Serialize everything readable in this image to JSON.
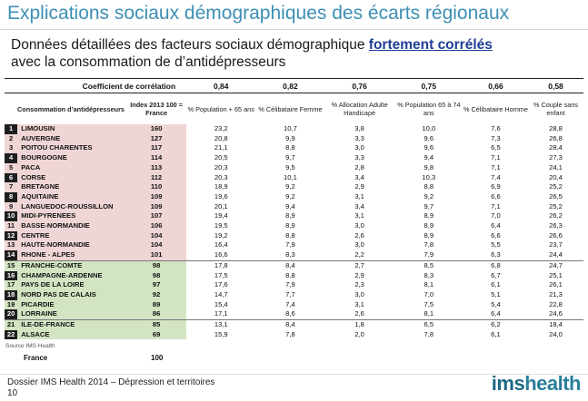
{
  "title": "Explications sociaux démographiques des écarts régionaux",
  "subtitle": {
    "line1_prefix": "Données détaillées des facteurs sociaux démographique",
    "line1_highlight": "fortement corrélés",
    "line2": "avec la consommation de d’antidépresseurs"
  },
  "table": {
    "coef_label": "Coefficient de corrélation",
    "coefficients": [
      "0,84",
      "0,82",
      "0,76",
      "0,75",
      "0,66",
      "0,58"
    ],
    "headers": {
      "region": "Consommation d’antidépresseurs",
      "index": "Index 2013 100 = France",
      "columns": [
        "% Population + 65 ans",
        "% Célibataire Femme",
        "% Allocation Adulte Handicapé",
        "% Population 65 à 74 ans",
        "% Célibataire Homme",
        "% Couple sans enfant"
      ]
    },
    "rows": [
      {
        "rank": "1",
        "region": "LIMOUSIN",
        "index": "160",
        "v": [
          "23,2",
          "10,7",
          "3,8",
          "10,0",
          "7,6",
          "28,8"
        ]
      },
      {
        "rank": "2",
        "region": "AUVERGNE",
        "index": "127",
        "v": [
          "20,8",
          "9,9",
          "3,3",
          "9,6",
          "7,3",
          "26,8"
        ]
      },
      {
        "rank": "3",
        "region": "POITOU CHARENTES",
        "index": "117",
        "v": [
          "21,1",
          "8,8",
          "3,0",
          "9,6",
          "6,5",
          "28,4"
        ]
      },
      {
        "rank": "4",
        "region": "BOURGOGNE",
        "index": "114",
        "v": [
          "20,5",
          "9,7",
          "3,3",
          "9,4",
          "7,1",
          "27,3"
        ]
      },
      {
        "rank": "5",
        "region": "PACA",
        "index": "113",
        "v": [
          "20,3",
          "9,5",
          "2,8",
          "9,8",
          "7,1",
          "24,1"
        ]
      },
      {
        "rank": "6",
        "region": "CORSE",
        "index": "112",
        "v": [
          "20,3",
          "10,1",
          "3,4",
          "10,3",
          "7,4",
          "20,4"
        ]
      },
      {
        "rank": "7",
        "region": "BRETAGNE",
        "index": "110",
        "v": [
          "18,9",
          "9,2",
          "2,9",
          "8,8",
          "6,9",
          "25,2"
        ]
      },
      {
        "rank": "8",
        "region": "AQUITAINE",
        "index": "109",
        "v": [
          "19,6",
          "9,2",
          "3,1",
          "9,2",
          "6,6",
          "26,5"
        ]
      },
      {
        "rank": "9",
        "region": "LANGUEDOC-ROUSSILLON",
        "index": "109",
        "v": [
          "20,1",
          "9,4",
          "3,4",
          "9,7",
          "7,1",
          "25,2"
        ]
      },
      {
        "rank": "10",
        "region": "MIDI-PYRENEES",
        "index": "107",
        "v": [
          "19,4",
          "8,9",
          "3,1",
          "8,9",
          "7,0",
          "26,2"
        ]
      },
      {
        "rank": "11",
        "region": "BASSE-NORMANDIE",
        "index": "106",
        "v": [
          "19,5",
          "8,9",
          "3,0",
          "8,9",
          "6,4",
          "26,3"
        ]
      },
      {
        "rank": "12",
        "region": "CENTRE",
        "index": "104",
        "v": [
          "19,2",
          "8,8",
          "2,6",
          "8,9",
          "6,6",
          "26,6"
        ]
      },
      {
        "rank": "13",
        "region": "HAUTE-NORMANDIE",
        "index": "104",
        "v": [
          "16,4",
          "7,9",
          "3,0",
          "7,8",
          "5,5",
          "23,7"
        ]
      },
      {
        "rank": "14",
        "region": "RHONE - ALPES",
        "index": "101",
        "v": [
          "16,6",
          "8,3",
          "2,2",
          "7,9",
          "6,3",
          "24,4"
        ]
      },
      {
        "rank": "15",
        "region": "FRANCHE-COMTE",
        "index": "98",
        "v": [
          "17,8",
          "8,4",
          "2,7",
          "8,5",
          "6,8",
          "24,7"
        ]
      },
      {
        "rank": "16",
        "region": "CHAMPAGNE-ARDENNE",
        "index": "98",
        "v": [
          "17,5",
          "8,8",
          "2,9",
          "8,3",
          "6,7",
          "25,1"
        ]
      },
      {
        "rank": "17",
        "region": "PAYS DE LA LOIRE",
        "index": "97",
        "v": [
          "17,6",
          "7,9",
          "2,3",
          "8,1",
          "6,1",
          "26,1"
        ]
      },
      {
        "rank": "18",
        "region": "NORD PAS DE CALAIS",
        "index": "92",
        "v": [
          "14,7",
          "7,7",
          "3,0",
          "7,0",
          "5,1",
          "21,3"
        ]
      },
      {
        "rank": "19",
        "region": "PICARDIE",
        "index": "89",
        "v": [
          "15,4",
          "7,4",
          "3,1",
          "7,5",
          "5,4",
          "22,8"
        ]
      },
      {
        "rank": "20",
        "region": "LORRAINE",
        "index": "86",
        "v": [
          "17,1",
          "8,6",
          "2,6",
          "8,1",
          "6,4",
          "24,6"
        ]
      },
      {
        "rank": "21",
        "region": "ILE-DE-FRANCE",
        "index": "85",
        "v": [
          "13,1",
          "8,4",
          "1,8",
          "6,5",
          "6,2",
          "18,4"
        ]
      },
      {
        "rank": "22",
        "region": "ALSACE",
        "index": "69",
        "v": [
          "15,9",
          "7,8",
          "2,0",
          "7,8",
          "6,1",
          "24,0"
        ]
      }
    ],
    "source": "Source IMS Health",
    "france_label": "France",
    "france_index": "100"
  },
  "footer": {
    "line1": "Dossier IMS Health 2014 – Dépression et territoires",
    "page": "10"
  },
  "logo": {
    "part1": "ims",
    "part2": "health"
  }
}
